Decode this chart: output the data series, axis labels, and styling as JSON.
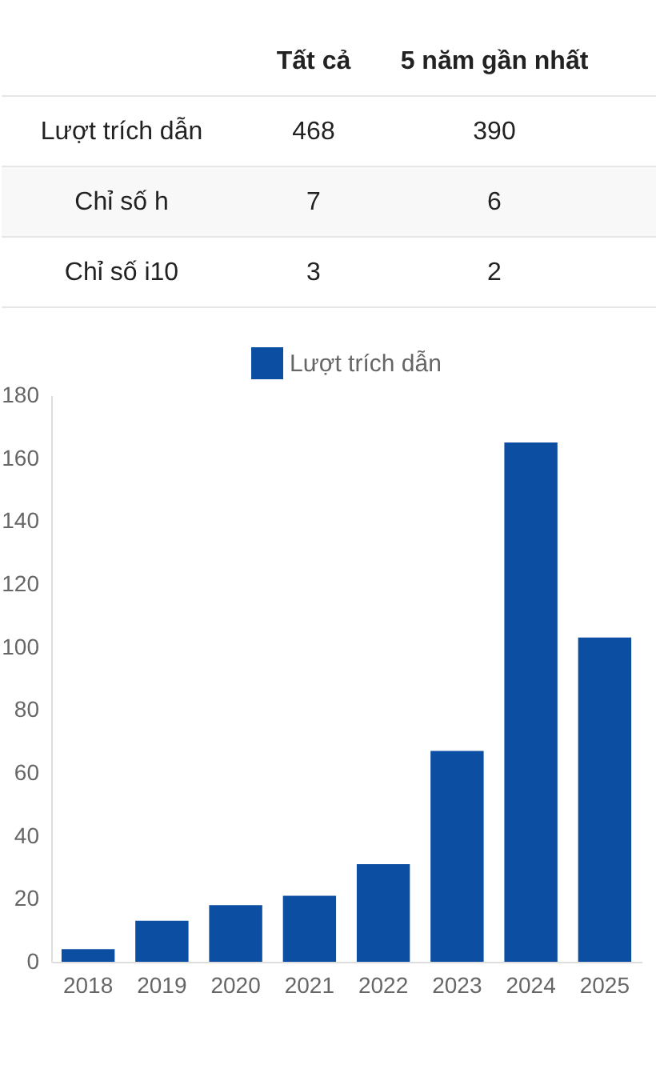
{
  "chart_data": [
    {
      "type": "other",
      "categories": [
        "Tất cả",
        "5 năm gần nhất"
      ],
      "y_categories": [
        "Lượt trích dẫn",
        "Chỉ số h",
        "Chỉ số i10"
      ],
      "cell_labels": [
        [
          "468",
          "390"
        ],
        [
          "7",
          "6"
        ],
        [
          "3",
          "2"
        ]
      ]
    },
    {
      "type": "bar",
      "categories": [
        "2018",
        "2019",
        "2020",
        "2021",
        "2022",
        "2023",
        "2024",
        "2025"
      ],
      "series": [
        {
          "name": "Lượt trích dẫn",
          "color": "#0b4ea2",
          "values": [
            4,
            13,
            18,
            21,
            31,
            67,
            165,
            103
          ]
        }
      ],
      "ylim": [
        0,
        180
      ],
      "yticks": [
        0,
        20,
        40,
        60,
        80,
        100,
        120,
        140,
        160,
        180
      ],
      "grid": false,
      "legend": "top"
    }
  ]
}
